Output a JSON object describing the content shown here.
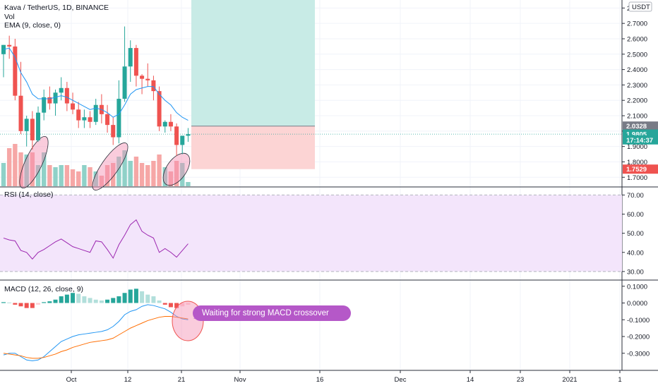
{
  "legend": {
    "symbol": "Kava / TetherUS, 1D, BINANCE",
    "volume": "Vol",
    "ema": "EMA (9, close, 0)",
    "rsi": "RSI (14, close)",
    "macd": "MACD (12, 26, close, 9)"
  },
  "price_axis": {
    "currency": "USDT",
    "ticks": [
      "2.8000",
      "2.7000",
      "2.6000",
      "2.5000",
      "2.4000",
      "2.3000",
      "2.2000",
      "2.1000",
      "2.0000",
      "1.9000",
      "1.8000",
      "1.7000"
    ],
    "tags": [
      {
        "text": "2.0328",
        "color": "#787b86",
        "value": 2.0328
      },
      {
        "text": "1.9805",
        "color": "#26a69a",
        "value": 1.9805
      },
      {
        "text": "17:14:37",
        "color": "#26a69a",
        "value": 1.943
      },
      {
        "text": "1.7529",
        "color": "#ef5350",
        "value": 1.7529
      }
    ]
  },
  "rsi_axis": {
    "ticks": [
      "70.00",
      "60.00",
      "50.00",
      "40.00",
      "30.00"
    ]
  },
  "macd_axis": {
    "ticks": [
      "0.1000",
      "0.0000",
      "-0.1000",
      "-0.2000",
      "-0.3000"
    ]
  },
  "time_axis": {
    "ticks": [
      "Oct",
      "12",
      "21",
      "Nov",
      "16",
      "Dec",
      "14",
      "23",
      "2021",
      "1"
    ]
  },
  "annotation": {
    "text": "Waiting for strong MACD crossover"
  },
  "colors": {
    "up": "#26a69a",
    "down": "#ef5350",
    "ema": "#2196f3",
    "rsi_line": "#9c27b0",
    "rsi_band": "#f3e5fb",
    "macd_line": "#2196f3",
    "signal_line": "#ff6d00",
    "target_zone": "#c8ebe6",
    "stop_zone": "#fcd4d4",
    "callout": "#b558c8"
  },
  "chart_data": [
    {
      "type": "candlestick",
      "title": "Kava / TetherUS, 1D, BINANCE",
      "x": [
        "Sep 20",
        "Sep 21",
        "Sep 22",
        "Sep 23",
        "Sep 24",
        "Sep 25",
        "Sep 26",
        "Sep 27",
        "Sep 28",
        "Sep 29",
        "Sep 30",
        "Oct 1",
        "Oct 2",
        "Oct 3",
        "Oct 4",
        "Oct 5",
        "Oct 6",
        "Oct 7",
        "Oct 8",
        "Oct 9",
        "Oct 10",
        "Oct 11",
        "Oct 12",
        "Oct 13",
        "Oct 14",
        "Oct 15",
        "Oct 16",
        "Oct 17",
        "Oct 18",
        "Oct 19",
        "Oct 20",
        "Oct 21",
        "Oct 22"
      ],
      "open": [
        2.5,
        2.56,
        2.55,
        2.23,
        2.0,
        2.08,
        1.94,
        2.12,
        2.22,
        2.18,
        2.25,
        2.28,
        2.18,
        2.14,
        2.07,
        2.09,
        2.06,
        2.17,
        2.11,
        2.04,
        1.96,
        2.21,
        2.42,
        2.54,
        2.36,
        2.34,
        2.33,
        2.26,
        2.03,
        2.06,
        2.03,
        1.91,
        1.97
      ],
      "high": [
        2.56,
        2.62,
        2.6,
        2.45,
        2.1,
        2.13,
        2.16,
        2.27,
        2.29,
        2.27,
        2.35,
        2.32,
        2.25,
        2.19,
        2.14,
        2.13,
        2.21,
        2.24,
        2.17,
        2.09,
        2.33,
        2.68,
        2.59,
        2.56,
        2.37,
        2.44,
        2.36,
        2.29,
        2.07,
        2.11,
        2.05,
        1.96,
        2.02
      ],
      "low": [
        2.35,
        2.47,
        2.2,
        1.98,
        1.9,
        1.88,
        1.93,
        2.07,
        2.14,
        2.1,
        2.2,
        2.13,
        2.11,
        2.02,
        2.02,
        2.02,
        2.04,
        2.05,
        1.99,
        1.91,
        1.92,
        2.19,
        2.32,
        2.29,
        2.24,
        2.29,
        2.2,
        2.0,
        1.99,
        2.0,
        1.84,
        1.85,
        1.93
      ],
      "close": [
        2.56,
        2.55,
        2.23,
        2.0,
        2.08,
        1.94,
        2.12,
        2.22,
        2.18,
        2.25,
        2.28,
        2.18,
        2.14,
        2.07,
        2.09,
        2.06,
        2.17,
        2.11,
        2.04,
        1.96,
        2.21,
        2.42,
        2.54,
        2.36,
        2.34,
        2.33,
        2.26,
        2.03,
        2.06,
        2.03,
        1.91,
        1.97,
        1.98
      ],
      "volume": [
        0.55,
        0.9,
        1.0,
        0.8,
        0.75,
        0.8,
        0.5,
        0.8,
        0.5,
        0.45,
        0.5,
        0.5,
        0.4,
        0.35,
        0.5,
        0.45,
        0.35,
        0.25,
        0.5,
        0.55,
        0.7,
        0.85,
        0.6,
        0.7,
        0.55,
        0.5,
        0.6,
        0.75,
        0.45,
        0.35,
        0.6,
        0.55,
        0.1
      ],
      "ema_9": [
        2.53,
        2.54,
        2.48,
        2.38,
        2.32,
        2.24,
        2.21,
        2.21,
        2.21,
        2.22,
        2.23,
        2.22,
        2.2,
        2.18,
        2.16,
        2.14,
        2.15,
        2.14,
        2.12,
        2.09,
        2.11,
        2.17,
        2.24,
        2.27,
        2.28,
        2.29,
        2.29,
        2.24,
        2.2,
        2.17,
        2.12,
        2.09,
        2.07
      ],
      "ylim": [
        1.66,
        2.82
      ],
      "position": {
        "entry": 2.0328,
        "target": 2.86,
        "stop": 1.7529
      }
    },
    {
      "type": "line",
      "title": "RSI (14, close)",
      "values": [
        47.5,
        46.5,
        46.0,
        41.0,
        40.0,
        36.5,
        40.0,
        41.5,
        43.5,
        45.5,
        47.0,
        45.0,
        43.0,
        42.0,
        41.0,
        40.0,
        46.0,
        45.5,
        41.5,
        37.0,
        44.0,
        49.0,
        54.5,
        57.0,
        51.0,
        49.0,
        47.5,
        40.0,
        42.0,
        40.0,
        37.5,
        41.0,
        44.5
      ],
      "ylim": [
        27,
        72
      ],
      "bands": [
        30,
        70
      ]
    },
    {
      "type": "bar+line",
      "title": "MACD (12, 26, close, 9)",
      "histogram": [
        0.005,
        0.003,
        -0.01,
        -0.02,
        -0.03,
        -0.03,
        -0.01,
        0.005,
        0.01,
        0.02,
        0.04,
        0.05,
        0.06,
        0.055,
        0.04,
        0.03,
        0.02,
        0.015,
        0.02,
        0.03,
        0.04,
        0.06,
        0.08,
        0.085,
        0.07,
        0.05,
        0.04,
        0.015,
        -0.01,
        -0.025,
        -0.03,
        -0.02,
        -0.01
      ],
      "macd": [
        -0.31,
        -0.3,
        -0.3,
        -0.32,
        -0.34,
        -0.345,
        -0.34,
        -0.32,
        -0.29,
        -0.26,
        -0.23,
        -0.215,
        -0.2,
        -0.19,
        -0.185,
        -0.18,
        -0.175,
        -0.17,
        -0.16,
        -0.14,
        -0.11,
        -0.07,
        -0.05,
        -0.04,
        -0.02,
        -0.01,
        -0.015,
        -0.025,
        -0.035,
        -0.055,
        -0.08,
        -0.095,
        -0.1
      ],
      "signal": [
        -0.3,
        -0.305,
        -0.31,
        -0.315,
        -0.325,
        -0.33,
        -0.33,
        -0.325,
        -0.315,
        -0.305,
        -0.29,
        -0.28,
        -0.265,
        -0.255,
        -0.245,
        -0.235,
        -0.23,
        -0.225,
        -0.22,
        -0.21,
        -0.19,
        -0.17,
        -0.15,
        -0.135,
        -0.12,
        -0.105,
        -0.095,
        -0.085,
        -0.08,
        -0.08,
        -0.085,
        -0.09,
        -0.095
      ],
      "ylim": [
        -0.36,
        0.12
      ]
    }
  ]
}
